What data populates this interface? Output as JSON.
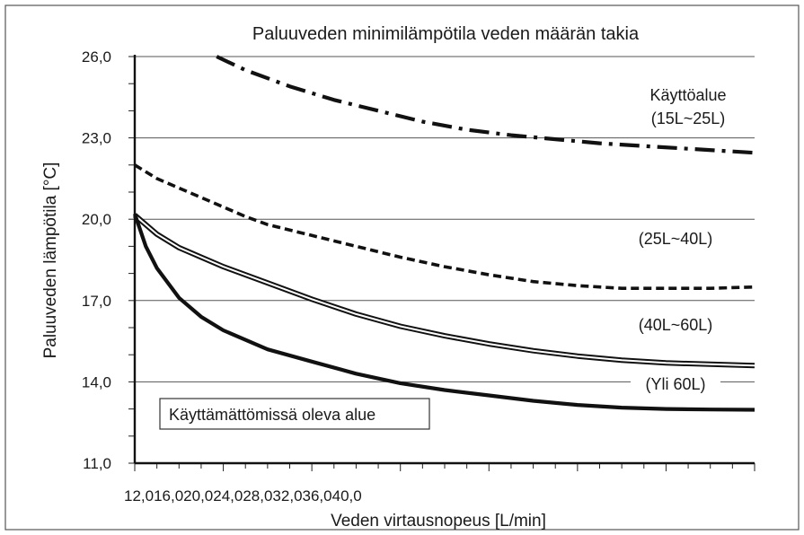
{
  "chart_data": {
    "type": "line",
    "title": "Paluuveden minimilämpötila veden määrän takia",
    "xlabel": "Veden virtausnopeus [L/min]",
    "ylabel": "Paluuveden lämpötila [°C]",
    "x_tick_labels_text": "12,016,020,024,028,032,036,040,0",
    "y_ticks": [
      {
        "value": 11,
        "label": "11,0"
      },
      {
        "value": 14,
        "label": "14,0"
      },
      {
        "value": 17,
        "label": "17,0"
      },
      {
        "value": 20,
        "label": "20,0"
      },
      {
        "value": 23,
        "label": "23,0"
      },
      {
        "value": 26,
        "label": "26,0"
      }
    ],
    "ylim": [
      11,
      26
    ],
    "xlim": [
      12,
      40
    ],
    "grid": "horizontal",
    "annotation": "Käyttämättömissä oleva alue",
    "series": [
      {
        "label_lines": [
          "Käyttöalue",
          "(15L~25L)"
        ],
        "style": "dash-dot",
        "x": [
          15.7,
          17,
          19,
          21,
          23,
          25,
          27,
          29,
          31,
          33,
          35,
          37,
          39,
          40
        ],
        "y": [
          26.0,
          25.5,
          24.9,
          24.4,
          24.0,
          23.6,
          23.3,
          23.1,
          22.95,
          22.8,
          22.7,
          22.6,
          22.5,
          22.45
        ]
      },
      {
        "label_lines": [
          "(25L~40L)"
        ],
        "style": "dashed",
        "x": [
          12,
          13,
          14,
          15,
          16,
          17,
          18,
          20,
          22,
          24,
          26,
          28,
          30,
          32,
          34,
          36,
          38,
          40
        ],
        "y": [
          22.0,
          21.5,
          21.15,
          20.8,
          20.45,
          20.1,
          19.8,
          19.4,
          19.0,
          18.6,
          18.25,
          17.95,
          17.7,
          17.55,
          17.45,
          17.45,
          17.45,
          17.5
        ]
      },
      {
        "label_lines": [
          "(40L~60L)"
        ],
        "style": "double",
        "x": [
          12,
          13,
          14,
          15,
          16,
          18,
          20,
          22,
          24,
          26,
          28,
          30,
          32,
          34,
          36,
          38,
          40
        ],
        "y": [
          20.15,
          19.45,
          18.95,
          18.6,
          18.25,
          17.65,
          17.05,
          16.5,
          16.05,
          15.7,
          15.4,
          15.15,
          14.95,
          14.8,
          14.7,
          14.65,
          14.6
        ]
      },
      {
        "label_lines": [
          "(Yli 60L)"
        ],
        "style": "thick",
        "x": [
          12,
          12.5,
          13,
          14,
          15,
          16,
          18,
          20,
          22,
          24,
          26,
          28,
          30,
          32,
          34,
          36,
          38,
          40
        ],
        "y": [
          20.2,
          19.0,
          18.2,
          17.1,
          16.4,
          15.9,
          15.2,
          14.75,
          14.3,
          13.95,
          13.7,
          13.5,
          13.3,
          13.15,
          13.05,
          13.0,
          12.98,
          12.97
        ]
      }
    ]
  }
}
